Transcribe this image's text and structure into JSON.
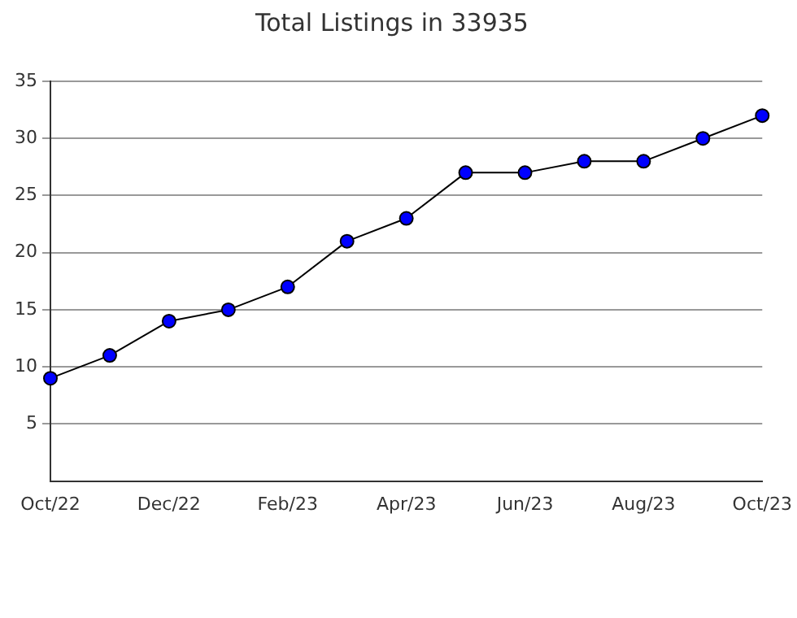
{
  "chart_data": {
    "type": "line",
    "title": "Total Listings in 33935",
    "categories": [
      "Oct/22",
      null,
      "Dec/22",
      null,
      "Feb/23",
      null,
      "Apr/23",
      null,
      "Jun/23",
      null,
      "Aug/23",
      null,
      "Oct/23"
    ],
    "series": [
      {
        "color": "#0000ff",
        "values": [
          9,
          11,
          14,
          15,
          17,
          21,
          23,
          27,
          27,
          28,
          28,
          30,
          32
        ]
      }
    ],
    "ylim": [
      0,
      35
    ],
    "yticks": [
      5,
      10,
      15,
      20,
      25,
      30,
      35
    ],
    "grid": "y",
    "legend": false,
    "marker": "circle",
    "line_style": "solid"
  }
}
